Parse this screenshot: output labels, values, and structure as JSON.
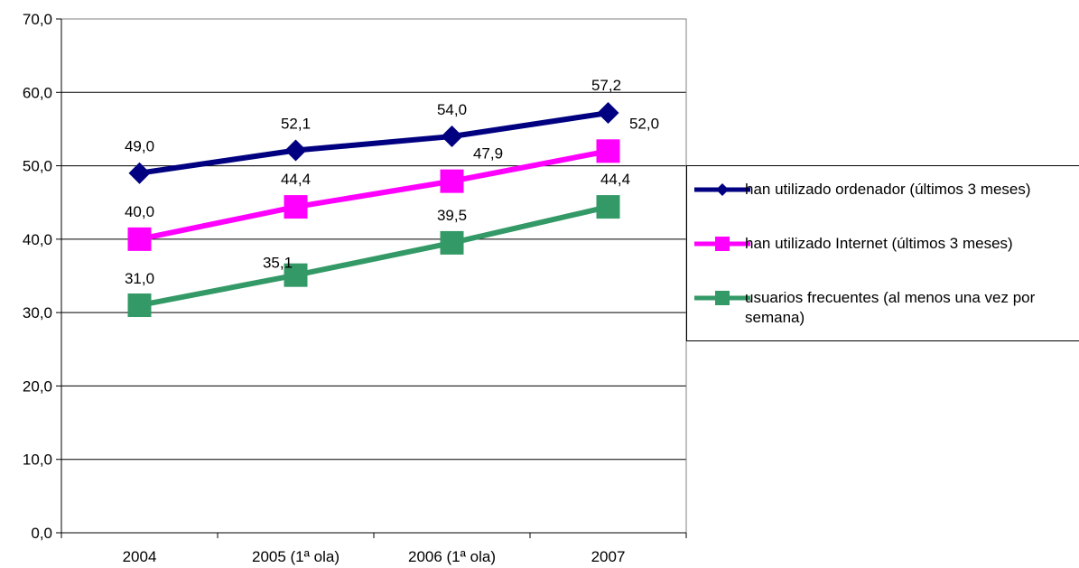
{
  "chart_data": {
    "type": "line",
    "categories": [
      "2004",
      "2005 (1ª ola)",
      "2006 (1ª ola)",
      "2007"
    ],
    "ylim": [
      0,
      70
    ],
    "yticks": [
      "0,0",
      "10,0",
      "20,0",
      "30,0",
      "40,0",
      "50,0",
      "60,0",
      "70,0"
    ],
    "grid": true,
    "legend_position": "right",
    "series": [
      {
        "name": "han utilizado ordenador (últimos 3 meses)",
        "values": [
          49.0,
          52.1,
          54.0,
          57.2
        ],
        "labels": [
          "49,0",
          "52,1",
          "54,0",
          "57,2"
        ],
        "color": "#000080",
        "marker": "diamond"
      },
      {
        "name": "han utilizado Internet (últimos 3 meses)",
        "values": [
          40.0,
          44.4,
          47.9,
          52.0
        ],
        "labels": [
          "40,0",
          "44,4",
          "47,9",
          "52,0"
        ],
        "color": "#FF00FF",
        "marker": "square"
      },
      {
        "name": "usuarios frecuentes (al menos una vez por semana)",
        "values": [
          31.0,
          35.1,
          39.5,
          44.4
        ],
        "labels": [
          "31,0",
          "35,1",
          "39,5",
          "44,4"
        ],
        "color": "#339966",
        "marker": "square"
      }
    ]
  }
}
